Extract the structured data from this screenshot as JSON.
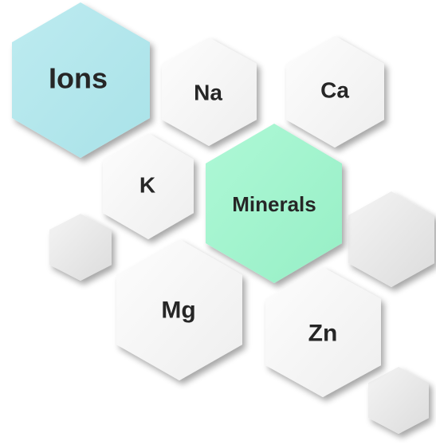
{
  "colors": {
    "ions_fill": "#b3e7ec",
    "minerals_fill": "#a4f5cf",
    "plain_fill": "#f5f5f5",
    "blank_fill": "#e8e8e8",
    "text": "#262626"
  },
  "hexagons": {
    "ions": {
      "label": "Ions"
    },
    "na": {
      "label": "Na"
    },
    "ca": {
      "label": "Ca"
    },
    "k": {
      "label": "K"
    },
    "minerals": {
      "label": "Minerals"
    },
    "mg": {
      "label": "Mg"
    },
    "zn": {
      "label": "Zn"
    }
  }
}
